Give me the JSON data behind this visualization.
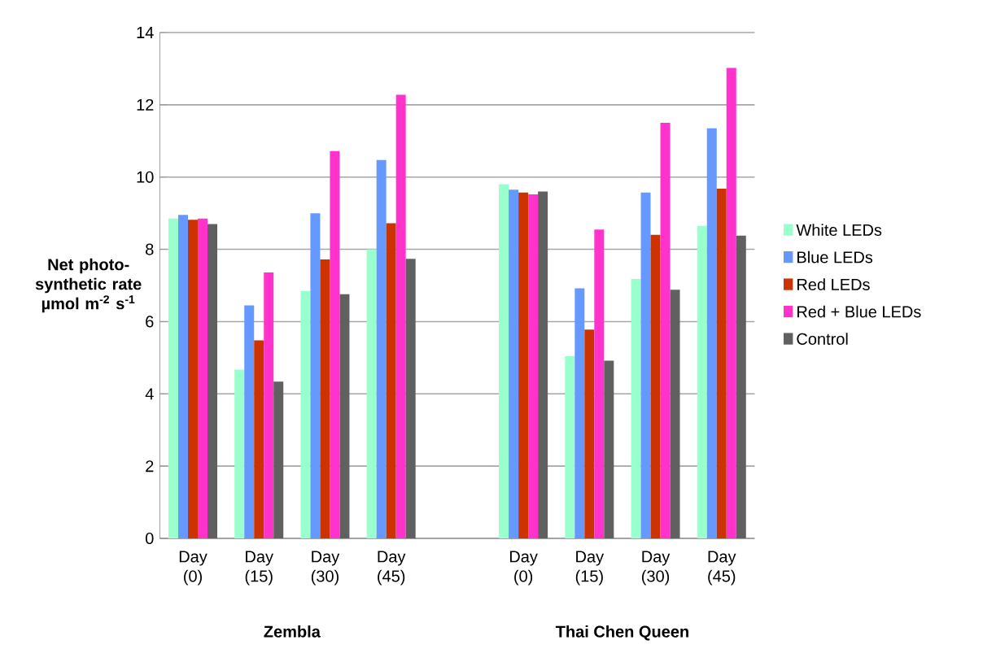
{
  "chart_data": {
    "type": "bar",
    "ylabel": "Net photo-synthetic rate µmol m$^{-2}$ s$^{-1}$",
    "categories": [
      "Day (0)",
      "Day (15)",
      "Day (30)",
      "Day (45)",
      null,
      "Day (0)",
      "Day (15)",
      "Day (30)",
      "Day (45)"
    ],
    "series": [
      {
        "name": "White LEDs",
        "color": "#99ffcc",
        "values": [
          8.85,
          4.67,
          6.85,
          8.0,
          null,
          9.8,
          5.05,
          7.18,
          8.65
        ]
      },
      {
        "name": "Blue LEDs",
        "color": "#6699ff",
        "values": [
          8.95,
          6.45,
          9.0,
          10.47,
          null,
          9.65,
          6.92,
          9.57,
          11.35
        ]
      },
      {
        "name": "Red LEDs",
        "color": "#cc3300",
        "values": [
          8.82,
          5.48,
          7.72,
          8.72,
          null,
          9.57,
          5.78,
          8.4,
          9.68
        ]
      },
      {
        "name": "Red + Blue LEDs",
        "color": "#ff33cc",
        "values": [
          8.85,
          7.36,
          10.72,
          12.28,
          null,
          9.52,
          8.55,
          11.5,
          13.02
        ]
      },
      {
        "name": "Control",
        "color": "#606060",
        "values": [
          8.7,
          4.34,
          6.76,
          7.74,
          null,
          9.6,
          4.92,
          6.88,
          8.38
        ]
      }
    ],
    "ylim": [
      0,
      14
    ],
    "yticks": [
      0,
      2,
      4,
      6,
      8,
      10,
      12,
      14
    ],
    "grid": "y",
    "legend": "right",
    "annotations": [
      "Zembla",
      "Thai Chen Queen"
    ]
  }
}
